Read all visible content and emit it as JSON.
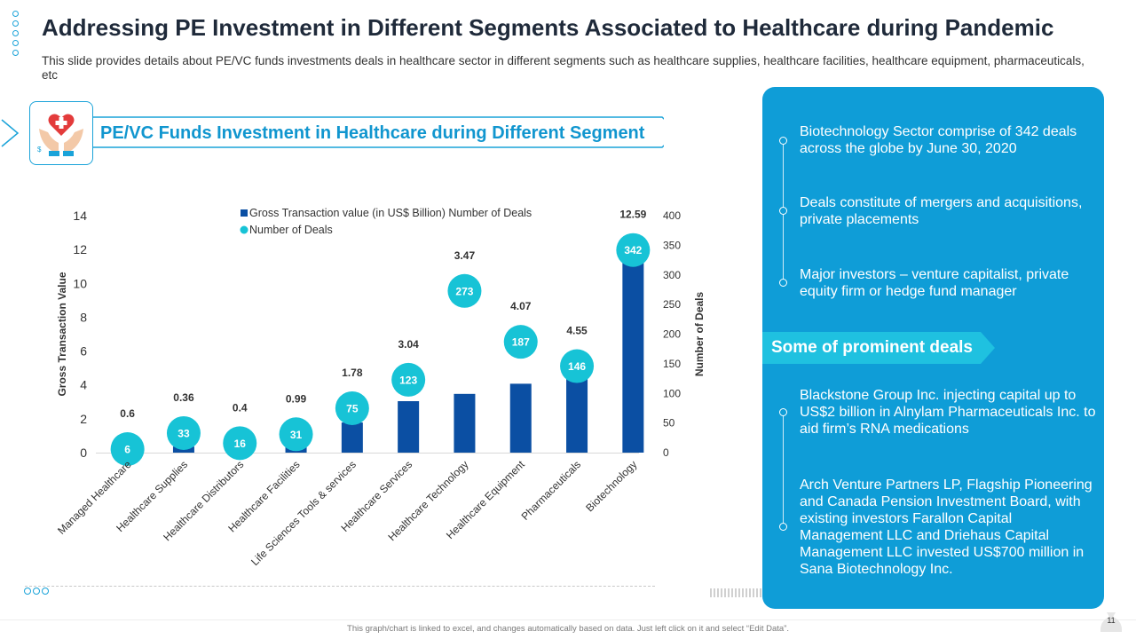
{
  "slide": {
    "title": "Addressing PE Investment in Different Segments Associated to Healthcare during Pandemic",
    "subtitle": "This slide provides details about PE/VC  funds investments deals in healthcare sector in different segments such as healthcare supplies, healthcare facilities, healthcare equipment, pharmaceuticals, etc",
    "banner_title": "PE/VC Funds Investment in Healthcare during Different Segment",
    "footnote": "This graph/chart is linked to excel, and changes automatically based on data. Just left click on it and select “Edit Data”.",
    "page_number": "11",
    "icon": "healthcare-hands-heart-icon"
  },
  "colors": {
    "accent": "#0f9dd7",
    "bar": "#0b4fa3",
    "dot": "#17c3d6",
    "title": "#1f2a3a"
  },
  "chart_data": {
    "type": "bar",
    "categories": [
      "Managed Healthcare",
      "Healthcare Supplies",
      "Healthcare Distributors",
      "Healthcare Facilities",
      "Life Sciences Tools & services",
      "Healthcare Services",
      "Healthcare Technology",
      "Healthcare Equipment",
      "Pharmaceuticals",
      "Biotechnology"
    ],
    "series": [
      {
        "name": "Gross Transaction value (in US$ Billion) Number of Deals",
        "type": "bar",
        "axis": "left",
        "values": [
          0.6,
          0.36,
          0.4,
          0.99,
          1.78,
          3.04,
          3.47,
          4.07,
          4.55,
          12.59
        ]
      },
      {
        "name": "Number of Deals",
        "type": "scatter",
        "axis": "right",
        "values": [
          6,
          33,
          16,
          31,
          75,
          123,
          273,
          187,
          146,
          342
        ]
      }
    ],
    "ylabel": "Gross Transaction Value",
    "y2label": "Number of Deals",
    "ylim": [
      0,
      14
    ],
    "y2lim": [
      0,
      400
    ],
    "yticks": [
      "0",
      "2",
      "4",
      "6",
      "8",
      "10",
      "12",
      "14"
    ],
    "y2ticks": [
      "0",
      "50",
      "100",
      "150",
      "200",
      "250",
      "300",
      "350",
      "400"
    ],
    "legend_position": "top"
  },
  "panel": {
    "bullets_top": [
      "Biotechnology Sector comprise of 342 deals across the globe by June 30, 2020",
      "Deals constitute of mergers and acquisitions, private placements",
      "Major investors – venture capitalist, private equity firm or hedge fund manager"
    ],
    "deals_label": "Some of prominent deals",
    "bullets_bottom": [
      "Blackstone Group Inc. injecting capital up to US$2 billion in Alnylam Pharmaceuticals Inc. to aid firm’s RNA medications",
      "Arch Venture Partners LP, Flagship Pioneering and Canada Pension Investment  Board, with existing investors Farallon Capital Management LLC and Driehaus Capital Management LLC invested US$700 million in Sana Biotechnology Inc."
    ]
  }
}
